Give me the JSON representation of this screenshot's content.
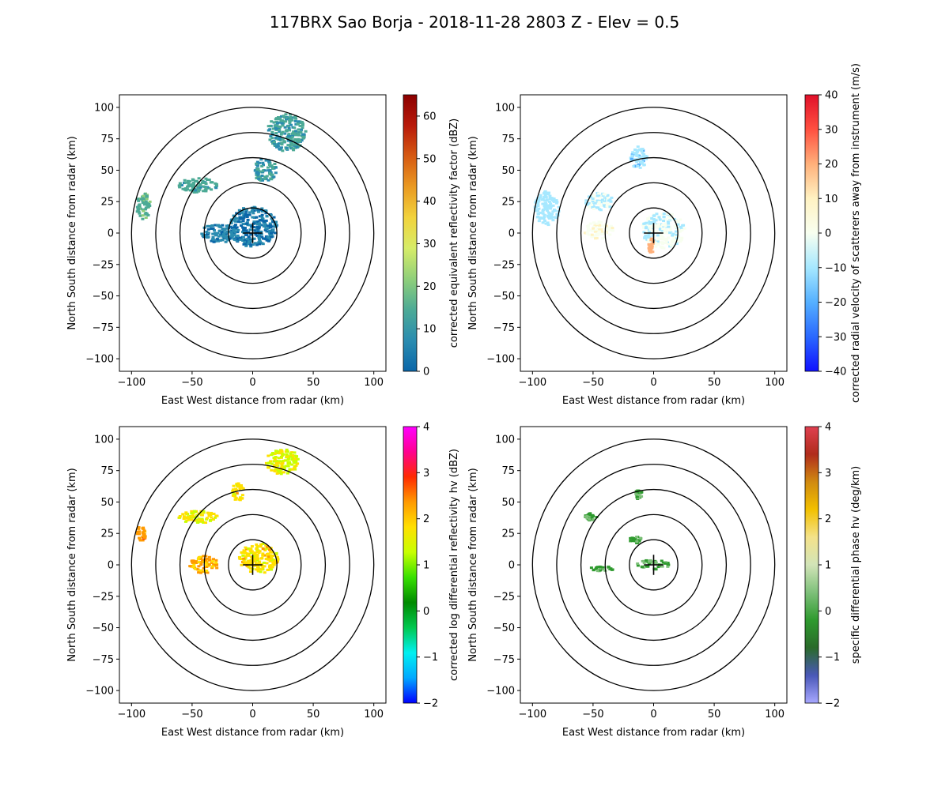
{
  "title": "117BRX Sao Borja - 2018-11-28 2803 Z -  Elev = 0.5",
  "chart_data": [
    {
      "type": "ppi",
      "field": "reflectivity",
      "xlabel": "East West distance from radar (km)",
      "ylabel": "North South distance from radar (km)",
      "xlim": [
        -110,
        110
      ],
      "ylim": [
        -110,
        110
      ],
      "ticks": [
        -100,
        -75,
        -50,
        -25,
        0,
        25,
        50,
        75,
        100
      ],
      "xtick_labels": [
        "−100",
        "−50",
        "0",
        "50",
        "100"
      ],
      "ytick_labels": [
        "−100",
        "−75",
        "−50",
        "−25",
        "0",
        "25",
        "50",
        "75",
        "100"
      ],
      "range_rings_km": [
        20,
        40,
        60,
        80,
        100
      ],
      "colorbar": {
        "label": "corrected equivalent reflectivity factor (dBZ)",
        "min": 0,
        "max": 65,
        "ticks": [
          0,
          10,
          20,
          30,
          40,
          50,
          60
        ],
        "colors": [
          "#0a66a8",
          "#2a8cb0",
          "#4caa96",
          "#8fcf7a",
          "#d6ec68",
          "#f2d33c",
          "#ea9a22",
          "#d65a12",
          "#b81a0a",
          "#8b0000"
        ]
      },
      "echoes": [
        {
          "name": "central cell",
          "x": 0,
          "y": 5,
          "rx": 20,
          "ry": 16,
          "value": 4
        },
        {
          "name": "southwest band",
          "x": -28,
          "y": 0,
          "rx": 14,
          "ry": 8,
          "value": 6
        },
        {
          "name": "northeast cluster",
          "x": 28,
          "y": 80,
          "rx": 16,
          "ry": 15,
          "value": 12
        },
        {
          "name": "northwest arc",
          "x": -45,
          "y": 38,
          "rx": 16,
          "ry": 6,
          "value": 14
        },
        {
          "name": "far west fragment",
          "x": -90,
          "y": 22,
          "rx": 6,
          "ry": 11,
          "value": 16
        },
        {
          "name": "north patch",
          "x": 10,
          "y": 50,
          "rx": 10,
          "ry": 9,
          "value": 10
        }
      ]
    },
    {
      "type": "ppi",
      "field": "velocity",
      "xlabel": "East West distance from radar (km)",
      "ylabel": "North South distance from radar (km)",
      "xlim": [
        -110,
        110
      ],
      "ylim": [
        -110,
        110
      ],
      "ticks": [
        -100,
        -75,
        -50,
        -25,
        0,
        25,
        50,
        75,
        100
      ],
      "xtick_labels": [
        "−100",
        "−50",
        "0",
        "50",
        "100"
      ],
      "ytick_labels": [
        "−100",
        "−75",
        "−50",
        "−25",
        "0",
        "25",
        "50",
        "75",
        "100"
      ],
      "range_rings_km": [
        20,
        40,
        60,
        80,
        100
      ],
      "colorbar": {
        "label": "corrected radial velocity of scatterers away from instrument (m/s)",
        "min": -40,
        "max": 40,
        "ticks": [
          -40,
          -30,
          -20,
          -10,
          0,
          10,
          20,
          30,
          40
        ],
        "colors": [
          "#1010ff",
          "#2a68ff",
          "#55b0ff",
          "#a6e8ff",
          "#f8fff0",
          "#fff2c2",
          "#ffb07a",
          "#ff5040",
          "#e0102a"
        ]
      },
      "echoes": [
        {
          "name": "far west fragment",
          "x": -88,
          "y": 20,
          "rx": 10,
          "ry": 14,
          "value": -10
        },
        {
          "name": "north patch",
          "x": -12,
          "y": 60,
          "rx": 7,
          "ry": 9,
          "value": -12
        },
        {
          "name": "west patch",
          "x": -45,
          "y": 25,
          "rx": 12,
          "ry": 7,
          "value": -6
        },
        {
          "name": "central cell",
          "x": 8,
          "y": 2,
          "rx": 18,
          "ry": 14,
          "value": -4
        },
        {
          "name": "southwest band",
          "x": -45,
          "y": 2,
          "rx": 12,
          "ry": 7,
          "value": 3
        },
        {
          "name": "south streak",
          "x": -2,
          "y": -10,
          "rx": 2,
          "ry": 7,
          "value": 20
        }
      ]
    },
    {
      "type": "ppi",
      "field": "differential reflectivity",
      "xlabel": "East West distance from radar (km)",
      "ylabel": "North South distance from radar (km)",
      "xlim": [
        -110,
        110
      ],
      "ylim": [
        -110,
        110
      ],
      "ticks": [
        -100,
        -75,
        -50,
        -25,
        0,
        25,
        50,
        75,
        100
      ],
      "xtick_labels": [
        "−100",
        "−50",
        "0",
        "50",
        "100"
      ],
      "ytick_labels": [
        "−100",
        "−75",
        "−50",
        "−25",
        "0",
        "25",
        "50",
        "75",
        "100"
      ],
      "range_rings_km": [
        20,
        40,
        60,
        80,
        100
      ],
      "colorbar": {
        "label": "corrected log differential reflectivity hv (dBZ)",
        "min": -2,
        "max": 4,
        "ticks": [
          -2,
          -1,
          0,
          1,
          2,
          3,
          4
        ],
        "colors": [
          "#0000ff",
          "#00a8ff",
          "#00f0f0",
          "#00c850",
          "#008a00",
          "#38e000",
          "#c8ff00",
          "#ffe000",
          "#ff9a00",
          "#ff2a00",
          "#ff0090",
          "#ff00ff"
        ]
      },
      "echoes": [
        {
          "name": "central cell",
          "x": 5,
          "y": 5,
          "rx": 16,
          "ry": 12,
          "value": 1.8
        },
        {
          "name": "southwest band",
          "x": -40,
          "y": 0,
          "rx": 12,
          "ry": 7,
          "value": 2.2
        },
        {
          "name": "northwest arc",
          "x": -45,
          "y": 38,
          "rx": 16,
          "ry": 5,
          "value": 1.6
        },
        {
          "name": "far west fragment",
          "x": -92,
          "y": 25,
          "rx": 4,
          "ry": 6,
          "value": 2.3
        },
        {
          "name": "north patch",
          "x": -12,
          "y": 58,
          "rx": 5,
          "ry": 7,
          "value": 1.8
        },
        {
          "name": "northeast cluster",
          "x": 25,
          "y": 82,
          "rx": 14,
          "ry": 10,
          "value": 1.5
        }
      ]
    },
    {
      "type": "ppi",
      "field": "specific differential phase",
      "xlabel": "East West distance from radar (km)",
      "ylabel": "North South distance from radar (km)",
      "xlim": [
        -110,
        110
      ],
      "ylim": [
        -110,
        110
      ],
      "ticks": [
        -100,
        -75,
        -50,
        -25,
        0,
        25,
        50,
        75,
        100
      ],
      "xtick_labels": [
        "−100",
        "−50",
        "0",
        "50",
        "100"
      ],
      "ytick_labels": [
        "−100",
        "−75",
        "−50",
        "−25",
        "0",
        "25",
        "50",
        "75",
        "100"
      ],
      "range_rings_km": [
        20,
        40,
        60,
        80,
        100
      ],
      "colorbar": {
        "label": "specific differential phase hv (deg/km)",
        "min": -2,
        "max": 4,
        "ticks": [
          -2,
          -1,
          0,
          1,
          2,
          3,
          4
        ],
        "colors": [
          "#a8a8ff",
          "#4a58b8",
          "#2a6a2a",
          "#2e9a2e",
          "#7ec07a",
          "#d2e4b8",
          "#f4e28a",
          "#f2c000",
          "#d08a10",
          "#b02c1c",
          "#e04050"
        ]
      },
      "echoes": [
        {
          "name": "central cell",
          "x": 0,
          "y": 0,
          "rx": 14,
          "ry": 4,
          "value": 0
        },
        {
          "name": "southwest band",
          "x": -42,
          "y": -3,
          "rx": 10,
          "ry": 2,
          "value": 0
        },
        {
          "name": "northwest patch",
          "x": -52,
          "y": 38,
          "rx": 5,
          "ry": 3,
          "value": 0
        },
        {
          "name": "north patch",
          "x": -12,
          "y": 56,
          "rx": 3,
          "ry": 4,
          "value": 0
        },
        {
          "name": "east patch",
          "x": -15,
          "y": 20,
          "rx": 5,
          "ry": 3,
          "value": 0
        }
      ]
    }
  ]
}
